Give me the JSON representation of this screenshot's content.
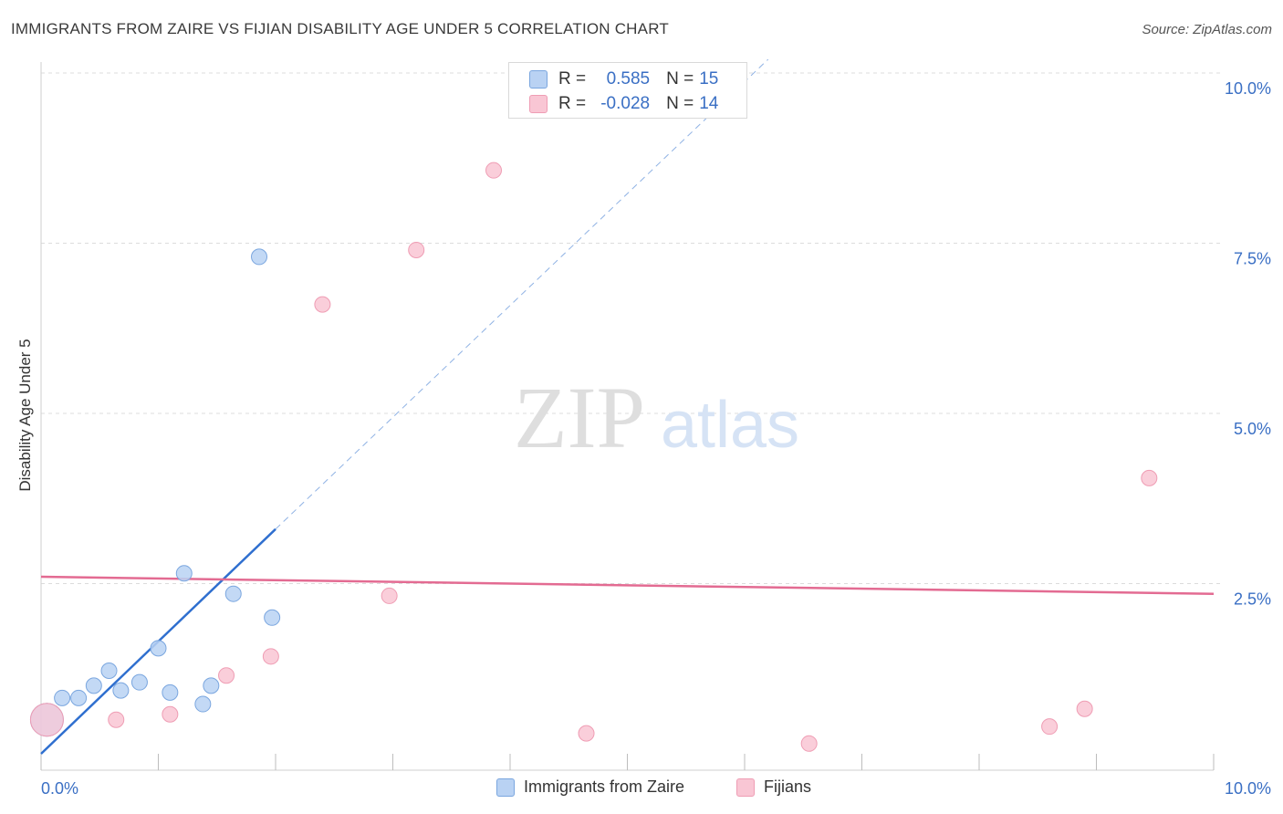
{
  "title": "IMMIGRANTS FROM ZAIRE VS FIJIAN DISABILITY AGE UNDER 5 CORRELATION CHART",
  "source": "Source: ZipAtlas.com",
  "watermark": {
    "zip": "ZIP",
    "atlas": "atlas"
  },
  "colors": {
    "zaire_fill": "#b9d2f3",
    "zaire_stroke": "#7aa6df",
    "zaire_line": "#2f6fcf",
    "fijian_fill": "#f9c6d4",
    "fijian_stroke": "#ef9db4",
    "fijian_line": "#e36b92",
    "axis_label": "#3a6fc4",
    "grid": "#dcdcdc"
  },
  "legend_top": {
    "rows": [
      {
        "r_label": "R =",
        "r_value": "0.585",
        "n_label": "N =",
        "n_value": "15"
      },
      {
        "r_label": "R =",
        "r_value": "-0.028",
        "n_label": "N =",
        "n_value": "14"
      }
    ]
  },
  "legend_bottom": {
    "items": [
      "Immigrants from Zaire",
      "Fijians"
    ]
  },
  "chart_data": {
    "type": "scatter",
    "title": "IMMIGRANTS FROM ZAIRE VS FIJIAN DISABILITY AGE UNDER 5 CORRELATION CHART",
    "xlabel": "",
    "ylabel": "Disability Age Under 5",
    "xlim": [
      0,
      10
    ],
    "ylim": [
      0,
      10
    ],
    "x_tick_labels": [
      "0.0%",
      "10.0%"
    ],
    "y_ticks": [
      {
        "value": 2.5,
        "label": "2.5%"
      },
      {
        "value": 5.0,
        "label": "5.0%"
      },
      {
        "value": 7.5,
        "label": "7.5%"
      },
      {
        "value": 10.0,
        "label": "10.0%"
      }
    ],
    "grid": true,
    "legend_position": "top-center",
    "series": [
      {
        "name": "Immigrants from Zaire",
        "r": 0.585,
        "n": 15,
        "points": [
          {
            "x": 0.05,
            "y": 0.5,
            "big": true
          },
          {
            "x": 0.18,
            "y": 0.82
          },
          {
            "x": 0.32,
            "y": 0.82
          },
          {
            "x": 0.45,
            "y": 1.0
          },
          {
            "x": 0.58,
            "y": 1.22
          },
          {
            "x": 0.68,
            "y": 0.93
          },
          {
            "x": 0.84,
            "y": 1.05
          },
          {
            "x": 1.0,
            "y": 1.55
          },
          {
            "x": 1.1,
            "y": 0.9
          },
          {
            "x": 1.22,
            "y": 2.65
          },
          {
            "x": 1.38,
            "y": 0.73
          },
          {
            "x": 1.45,
            "y": 1.0
          },
          {
            "x": 1.64,
            "y": 2.35
          },
          {
            "x": 1.86,
            "y": 7.3
          },
          {
            "x": 1.97,
            "y": 2.0
          }
        ],
        "trend": {
          "x0": 0.0,
          "y0": 0.0,
          "x1": 2.0,
          "y1": 3.3,
          "extended_to_x": 6.2,
          "extended_to_y": 10.2
        }
      },
      {
        "name": "Fijians",
        "r": -0.028,
        "n": 14,
        "points": [
          {
            "x": 0.05,
            "y": 0.5,
            "big": true
          },
          {
            "x": 0.64,
            "y": 0.5
          },
          {
            "x": 1.1,
            "y": 0.58
          },
          {
            "x": 1.58,
            "y": 1.15
          },
          {
            "x": 1.96,
            "y": 1.43
          },
          {
            "x": 2.4,
            "y": 6.6
          },
          {
            "x": 2.97,
            "y": 2.32
          },
          {
            "x": 3.2,
            "y": 7.4
          },
          {
            "x": 3.86,
            "y": 8.57
          },
          {
            "x": 4.65,
            "y": 0.3
          },
          {
            "x": 6.55,
            "y": 0.15
          },
          {
            "x": 8.6,
            "y": 0.4
          },
          {
            "x": 8.9,
            "y": 0.66
          },
          {
            "x": 9.45,
            "y": 4.05
          }
        ],
        "trend": {
          "x0": 0.0,
          "y0": 2.6,
          "x1": 10.0,
          "y1": 2.35
        }
      }
    ]
  }
}
